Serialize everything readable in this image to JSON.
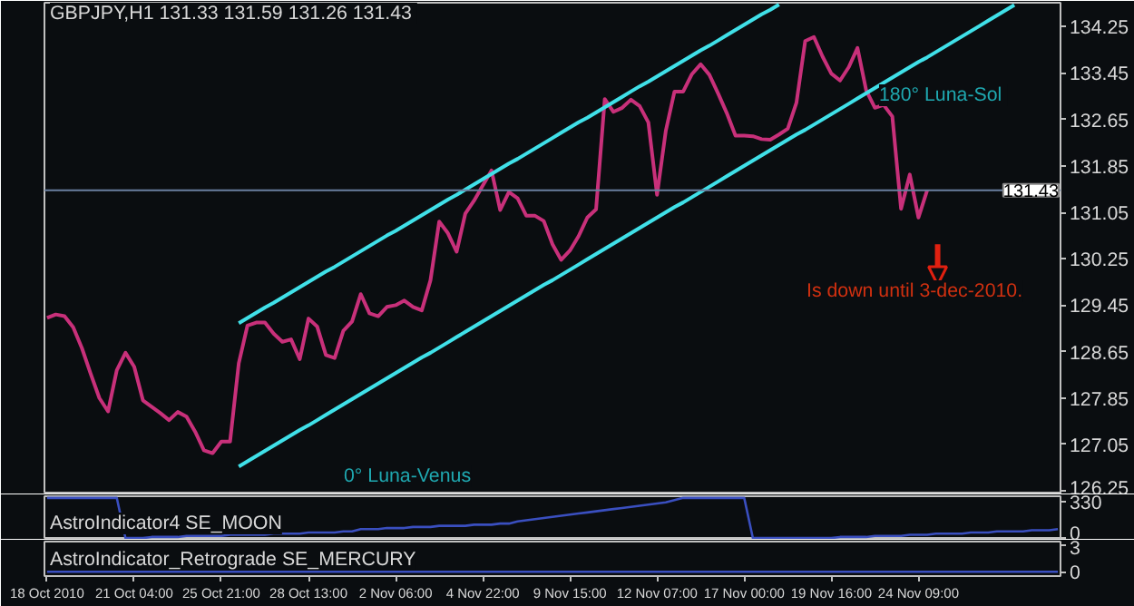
{
  "chart_data": [
    {
      "type": "line",
      "title": "GBPJPY,H1  131.33 131.59 131.26 131.43",
      "categories": [
        null,
        null,
        null,
        null,
        null,
        null,
        null,
        null,
        null,
        null,
        null,
        null,
        null,
        null,
        null,
        null,
        null,
        null,
        null,
        null,
        null,
        null,
        null,
        null,
        null,
        null,
        null,
        null,
        null,
        null,
        null,
        null,
        null,
        null,
        null,
        null,
        null,
        null,
        null,
        null,
        null,
        null,
        null,
        null,
        null,
        null,
        null,
        null,
        null,
        null,
        null,
        null,
        null,
        null,
        null,
        null,
        null,
        null,
        null,
        null,
        null,
        null,
        null,
        null,
        null,
        null,
        null,
        null,
        null,
        null,
        null,
        null,
        null,
        null,
        null,
        null,
        null,
        null,
        null,
        null,
        null,
        null,
        null,
        null,
        null,
        null,
        null,
        null,
        null,
        null,
        null,
        null,
        null,
        null,
        null,
        null,
        null,
        null,
        null,
        null,
        null,
        null,
        null,
        null,
        null,
        null,
        null,
        null,
        null,
        null,
        null,
        null,
        null,
        null,
        null,
        null,
        null
      ],
      "ylim": [
        126.19,
        134.66
      ],
      "yticks": [
        126.25,
        127.05,
        127.85,
        128.65,
        129.45,
        130.25,
        131.05,
        131.85,
        132.65,
        133.45,
        134.25
      ],
      "tick_labels": "y",
      "grid": false,
      "series": [
        {
          "color": "#c8307a",
          "values": [
            129.23,
            129.29,
            129.26,
            129.07,
            128.71,
            128.27,
            127.85,
            127.62,
            128.33,
            128.63,
            128.39,
            127.81,
            127.7,
            127.59,
            127.47,
            127.61,
            127.53,
            127.27,
            126.95,
            126.9,
            127.1,
            127.1,
            128.45,
            129.1,
            129.15,
            129.15,
            128.96,
            128.82,
            128.86,
            128.52,
            129.22,
            129.08,
            128.59,
            128.54,
            129.01,
            129.17,
            129.64,
            129.31,
            129.26,
            129.42,
            129.45,
            129.53,
            129.42,
            129.36,
            129.88,
            130.89,
            130.69,
            130.37,
            131.03,
            131.25,
            131.51,
            131.77,
            131.09,
            131.4,
            131.29,
            130.99,
            130.99,
            130.9,
            130.5,
            130.23,
            130.39,
            130.64,
            130.96,
            131.1,
            133.0,
            132.78,
            132.85,
            132.99,
            132.88,
            132.6,
            131.35,
            132.45,
            133.13,
            133.13,
            133.43,
            133.6,
            133.42,
            133.1,
            132.76,
            132.37,
            132.37,
            132.36,
            132.31,
            132.3,
            132.39,
            132.49,
            132.94,
            134.0,
            134.07,
            133.73,
            133.44,
            133.32,
            133.55,
            133.88,
            133.15,
            132.85,
            132.9,
            132.7,
            131.11,
            131.7,
            130.96,
            131.43,
            null,
            null,
            null,
            null,
            null,
            null,
            null,
            null,
            null,
            null,
            null,
            null,
            null,
            null,
            null
          ]
        },
        {
          "color": "#40e0e8",
          "values": [
            null,
            null,
            null,
            null,
            null,
            null,
            null,
            null,
            null,
            null,
            null,
            null,
            null,
            null,
            null,
            null,
            null,
            null,
            null,
            null,
            null,
            null,
            129.14,
            129.23,
            129.32,
            129.41,
            129.49,
            129.58,
            129.67,
            129.76,
            129.85,
            129.94,
            130.03,
            130.11,
            130.2,
            130.29,
            130.38,
            130.47,
            130.56,
            130.65,
            130.73,
            130.82,
            130.91,
            131.0,
            131.09,
            131.18,
            131.27,
            131.35,
            131.44,
            131.53,
            131.62,
            131.71,
            131.8,
            131.89,
            131.97,
            132.06,
            132.15,
            132.24,
            132.33,
            132.42,
            132.51,
            132.6,
            132.68,
            132.77,
            132.86,
            132.95,
            133.04,
            133.13,
            133.22,
            133.3,
            133.39,
            133.48,
            133.57,
            133.66,
            133.75,
            133.84,
            133.92,
            134.01,
            134.1,
            134.19,
            134.28,
            134.37,
            134.46,
            134.54,
            134.63,
            null,
            null,
            null,
            null,
            null,
            null,
            null,
            null,
            null,
            null,
            null,
            null,
            null,
            null,
            null,
            null,
            null,
            null,
            null,
            null,
            null,
            null,
            null,
            null,
            null,
            null,
            null,
            null,
            null,
            null,
            null,
            null
          ]
        },
        {
          "color": "#40e0e8",
          "values": [
            null,
            null,
            null,
            null,
            null,
            null,
            null,
            null,
            null,
            null,
            null,
            null,
            null,
            null,
            null,
            null,
            null,
            null,
            null,
            null,
            null,
            null,
            126.67,
            126.76,
            126.85,
            126.94,
            127.03,
            127.12,
            127.21,
            127.3,
            127.38,
            127.47,
            127.56,
            127.65,
            127.74,
            127.83,
            127.92,
            128.01,
            128.1,
            128.19,
            128.28,
            128.37,
            128.46,
            128.55,
            128.63,
            128.72,
            128.81,
            128.9,
            128.99,
            129.08,
            129.17,
            129.26,
            129.35,
            129.44,
            129.53,
            129.62,
            129.71,
            129.8,
            129.88,
            129.97,
            130.06,
            130.15,
            130.24,
            130.33,
            130.42,
            130.51,
            130.6,
            130.69,
            130.78,
            130.87,
            130.96,
            131.05,
            131.14,
            131.22,
            131.31,
            131.4,
            131.49,
            131.58,
            131.67,
            131.76,
            131.85,
            131.94,
            132.03,
            132.12,
            132.21,
            132.3,
            132.39,
            132.47,
            132.56,
            132.65,
            132.74,
            132.83,
            132.92,
            133.01,
            133.1,
            133.19,
            133.28,
            133.37,
            133.46,
            133.55,
            133.64,
            133.72,
            133.81,
            133.9,
            133.99,
            134.08,
            134.17,
            134.26,
            134.35,
            134.44,
            134.53,
            134.62,
            null,
            null,
            null,
            null,
            null
          ]
        }
      ],
      "ref_lines": [
        {
          "axis": "y",
          "value": 131.43,
          "label": "131.43",
          "color": "#6a7fa0"
        }
      ],
      "annotations": [
        "0° Luna-Venus",
        "180°  Luna-Sol",
        "Is down until 3-dec-2010."
      ]
    },
    {
      "type": "line",
      "title": "AstroIndicator4 SE_MOON",
      "categories": [
        null,
        null,
        null,
        null,
        null,
        null,
        null,
        null,
        null,
        null,
        null,
        null,
        null,
        null,
        null,
        null,
        null,
        null,
        null,
        null,
        null,
        null,
        null,
        null,
        null,
        null,
        null,
        null,
        null,
        null,
        null,
        null,
        null,
        null,
        null,
        null,
        null,
        null,
        null,
        null,
        null,
        null,
        null,
        null,
        null,
        null,
        null,
        null,
        null,
        null,
        null,
        null,
        null,
        null,
        null,
        null,
        null,
        null,
        null,
        null,
        null,
        null,
        null,
        null,
        null,
        null,
        null,
        null,
        null,
        null,
        null,
        null,
        null,
        null,
        null,
        null,
        null,
        null,
        null,
        null,
        null,
        null,
        null,
        null,
        null,
        null,
        null,
        null,
        null,
        null,
        null,
        null,
        null,
        null,
        null,
        null,
        null,
        null,
        null,
        null,
        null,
        null,
        null,
        null,
        null,
        null,
        null,
        null,
        null,
        null,
        null,
        null,
        null,
        null,
        null,
        null,
        null
      ],
      "ylim": [
        -15,
        375
      ],
      "yticks": [
        0,
        330
      ],
      "tick_labels": "y",
      "grid": false,
      "series": [
        {
          "color": "#3a4fc0",
          "values": [
            360,
            360,
            360,
            360,
            360,
            360,
            360,
            360,
            360,
            0,
            0,
            0,
            10,
            10,
            10,
            10,
            20,
            20,
            20,
            20,
            20,
            30,
            30,
            30,
            30,
            30,
            40,
            40,
            40,
            40,
            50,
            50,
            50,
            50,
            60,
            60,
            80,
            80,
            80,
            90,
            90,
            90,
            100,
            100,
            100,
            110,
            110,
            110,
            110,
            120,
            120,
            120,
            130,
            130,
            150,
            160,
            170,
            180,
            190,
            200,
            210,
            220,
            230,
            240,
            250,
            260,
            270,
            280,
            290,
            300,
            310,
            320,
            340,
            360,
            360,
            360,
            360,
            360,
            360,
            360,
            360,
            0,
            0,
            0,
            0,
            0,
            0,
            0,
            0,
            0,
            0,
            10,
            10,
            10,
            10,
            20,
            20,
            20,
            20,
            30,
            30,
            30,
            40,
            40,
            40,
            40,
            50,
            50,
            50,
            60,
            60,
            60,
            60,
            70,
            70,
            70,
            80
          ]
        }
      ]
    },
    {
      "type": "line",
      "title": "AstroIndicator_Retrograde SE_MERCURY",
      "categories": [
        "18 Oct 2010",
        null,
        null,
        null,
        null,
        null,
        null,
        null,
        null,
        null,
        "21 Oct 04:00",
        null,
        null,
        null,
        null,
        null,
        null,
        null,
        null,
        null,
        "25 Oct 21:00",
        null,
        null,
        null,
        null,
        null,
        null,
        null,
        null,
        null,
        "28 Oct 13:00",
        null,
        null,
        null,
        null,
        null,
        null,
        null,
        null,
        null,
        "2 Nov 06:00",
        null,
        null,
        null,
        null,
        null,
        null,
        null,
        null,
        null,
        "4 Nov 22:00",
        null,
        null,
        null,
        null,
        null,
        null,
        null,
        null,
        null,
        "9 Nov 15:00",
        null,
        null,
        null,
        null,
        null,
        null,
        null,
        null,
        null,
        "12 Nov 07:00",
        null,
        null,
        null,
        null,
        null,
        null,
        null,
        null,
        null,
        "17 Nov 00:00",
        null,
        null,
        null,
        null,
        null,
        null,
        null,
        null,
        null,
        "19 Nov 16:00",
        null,
        null,
        null,
        null,
        null,
        null,
        null,
        null,
        null,
        "24 Nov 09:00",
        null,
        null,
        null,
        null,
        null,
        null,
        null,
        null,
        null,
        null,
        null,
        null,
        null,
        null,
        null,
        null
      ],
      "ylim": [
        -0.5,
        3.5
      ],
      "yticks": [
        0,
        3
      ],
      "grid": false,
      "series": [
        {
          "color": "#3a4fc0",
          "values": [
            0,
            0,
            0,
            0,
            0,
            0,
            0,
            0,
            0,
            0,
            0,
            0,
            0,
            0,
            0,
            0,
            0,
            0,
            0,
            0,
            0,
            0,
            0,
            0,
            0,
            0,
            0,
            0,
            0,
            0,
            0,
            0,
            0,
            0,
            0,
            0,
            0,
            0,
            0,
            0,
            0,
            0,
            0,
            0,
            0,
            0,
            0,
            0,
            0,
            0,
            0,
            0,
            0,
            0,
            0,
            0,
            0,
            0,
            0,
            0,
            0,
            0,
            0,
            0,
            0,
            0,
            0,
            0,
            0,
            0,
            0,
            0,
            0,
            0,
            0,
            0,
            0,
            0,
            0,
            0,
            0,
            0,
            0,
            0,
            0,
            0,
            0,
            0,
            0,
            0,
            0,
            0,
            0,
            0,
            0,
            0,
            0,
            0,
            0,
            0,
            0,
            0,
            0,
            0,
            0,
            0,
            0,
            0,
            0,
            0,
            0,
            0,
            0,
            0,
            0,
            0,
            0
          ]
        }
      ]
    }
  ]
}
